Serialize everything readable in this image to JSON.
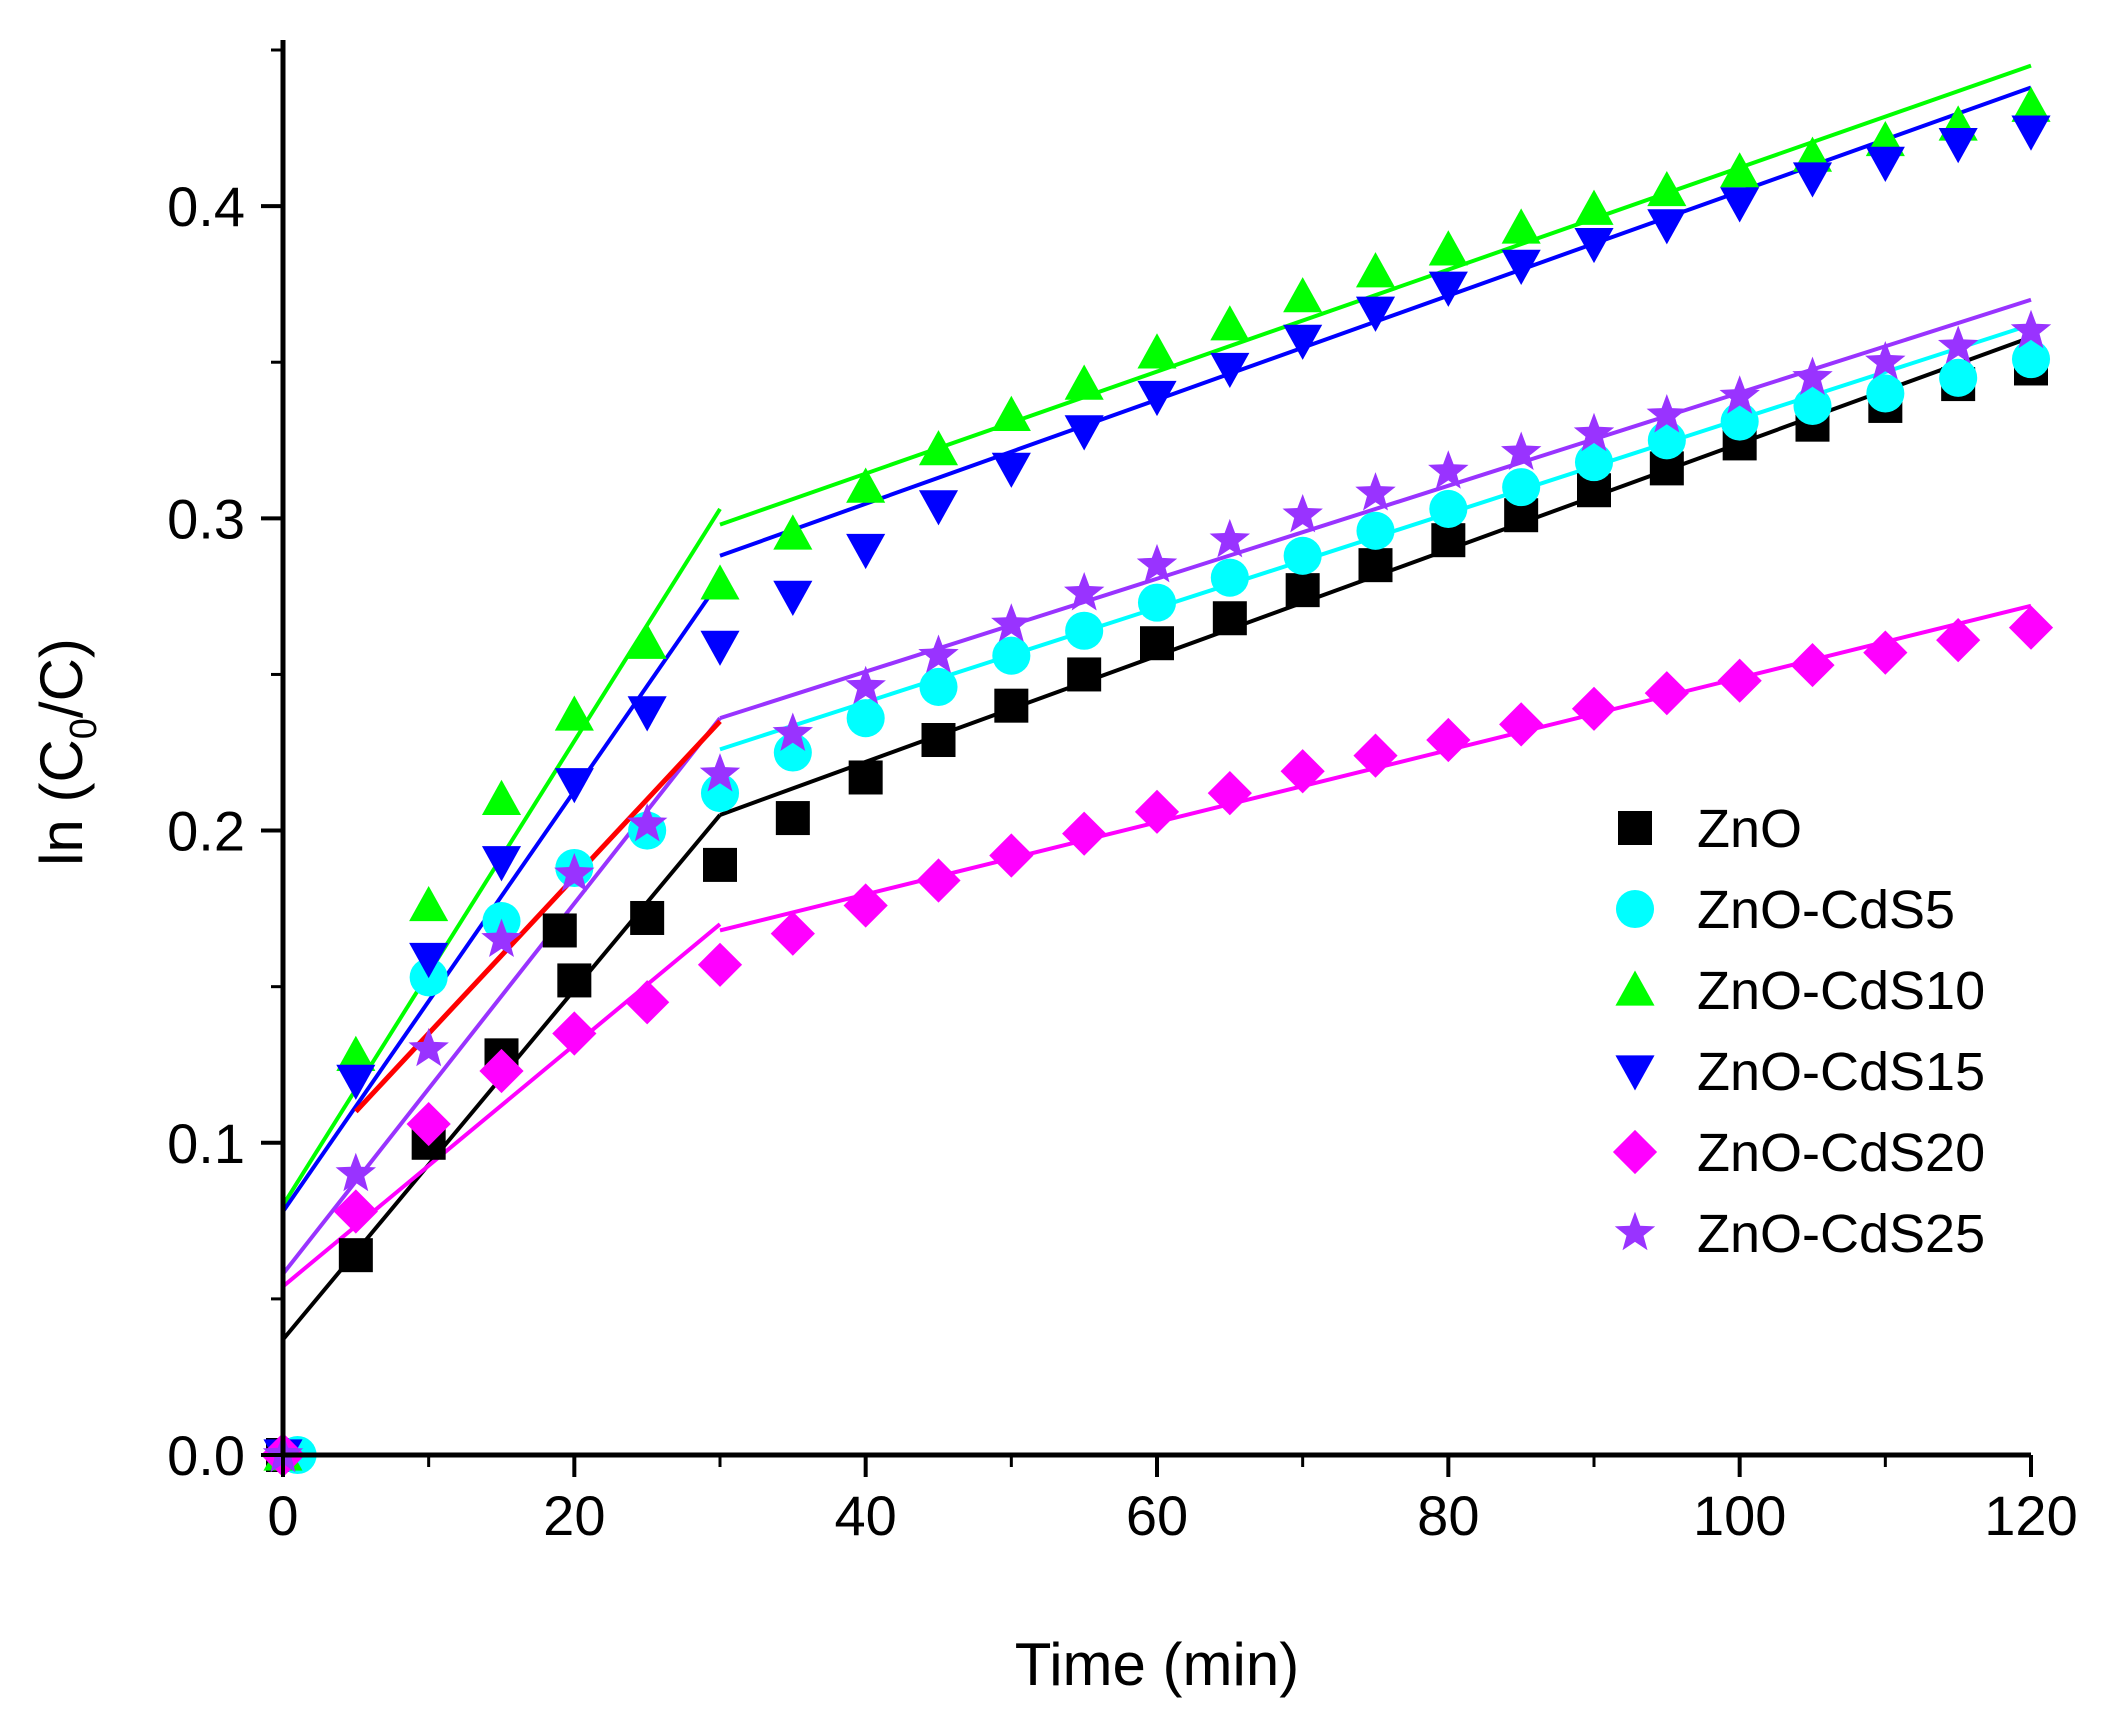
{
  "chart_data": {
    "type": "scatter",
    "title": "",
    "xlabel": "Time (min)",
    "ylabel_parts": {
      "pre": "ln (C",
      "sub": "0",
      "post": "/C)"
    },
    "xlim": [
      0,
      120
    ],
    "ylim": [
      0,
      0.45
    ],
    "x_ticks": [
      0,
      20,
      40,
      60,
      80,
      100,
      120
    ],
    "x_tick_labels": [
      "0",
      "20",
      "40",
      "60",
      "80",
      "100",
      "120"
    ],
    "y_ticks": [
      0,
      0.1,
      0.2,
      0.3,
      0.4
    ],
    "y_tick_labels": [
      "0.0",
      "0.1",
      "0.2",
      "0.3",
      "0.4"
    ],
    "grid": false,
    "legend_position": "right",
    "series": [
      {
        "name": "ZnO",
        "color": "#000000",
        "marker": "square",
        "x": [
          0,
          5,
          10,
          15,
          19,
          20,
          25,
          30,
          35,
          40,
          45,
          50,
          55,
          60,
          65,
          70,
          75,
          80,
          85,
          90,
          95,
          100,
          105,
          110,
          115,
          120
        ],
        "y": [
          0,
          0.064,
          0.1,
          0.128,
          0.168,
          0.152,
          0.172,
          0.189,
          0.204,
          0.217,
          0.229,
          0.24,
          0.25,
          0.26,
          0.268,
          0.277,
          0.285,
          0.293,
          0.301,
          0.309,
          0.316,
          0.324,
          0.33,
          0.336,
          0.343,
          0.348
        ],
        "fits": [
          {
            "x": [
              0,
              30
            ],
            "y": [
              0.037,
              0.205
            ]
          },
          {
            "x": [
              30,
              120
            ],
            "y": [
              0.205,
              0.358
            ]
          }
        ]
      },
      {
        "name": "ZnO-CdS5",
        "color": "#00ffff",
        "marker": "circle",
        "x": [
          1,
          10,
          15,
          20,
          25,
          30,
          35,
          40,
          45,
          50,
          55,
          60,
          65,
          70,
          75,
          80,
          85,
          90,
          95,
          100,
          105,
          110,
          115,
          120
        ],
        "y": [
          0,
          0.153,
          0.171,
          0.188,
          0.2,
          0.212,
          0.225,
          0.236,
          0.246,
          0.256,
          0.264,
          0.273,
          0.281,
          0.288,
          0.296,
          0.303,
          0.31,
          0.318,
          0.325,
          0.331,
          0.336,
          0.34,
          0.345,
          0.351
        ],
        "fits": [
          {
            "x": [
              30,
              120
            ],
            "y": [
              0.226,
              0.362
            ]
          }
        ]
      },
      {
        "name": "ZnO-CdS10",
        "color": "#00ff00",
        "marker": "triangle-up",
        "x": [
          0,
          5,
          10,
          15,
          20,
          25,
          30,
          35,
          40,
          45,
          50,
          55,
          60,
          65,
          70,
          75,
          80,
          85,
          90,
          95,
          100,
          105,
          110,
          115,
          120
        ],
        "y": [
          0,
          0.128,
          0.176,
          0.21,
          0.237,
          0.26,
          0.279,
          0.295,
          0.31,
          0.322,
          0.333,
          0.343,
          0.353,
          0.362,
          0.371,
          0.379,
          0.386,
          0.393,
          0.399,
          0.405,
          0.411,
          0.416,
          0.421,
          0.426,
          0.432
        ],
        "fits": [
          {
            "x": [
              0,
              30
            ],
            "y": [
              0.08,
              0.303
            ]
          },
          {
            "x": [
              30,
              120
            ],
            "y": [
              0.298,
              0.445
            ]
          }
        ]
      },
      {
        "name": "ZnO-CdS15",
        "color": "#0000ff",
        "marker": "triangle-down",
        "x": [
          0,
          5,
          10,
          15,
          20,
          25,
          30,
          35,
          40,
          45,
          50,
          55,
          60,
          65,
          70,
          75,
          80,
          85,
          90,
          95,
          100,
          105,
          110,
          115,
          120
        ],
        "y": [
          0,
          0.12,
          0.159,
          0.19,
          0.215,
          0.238,
          0.259,
          0.275,
          0.29,
          0.304,
          0.316,
          0.328,
          0.339,
          0.348,
          0.357,
          0.366,
          0.374,
          0.381,
          0.388,
          0.394,
          0.401,
          0.409,
          0.414,
          0.42,
          0.424
        ],
        "fits": [
          {
            "x": [
              0,
              30
            ],
            "y": [
              0.078,
              0.28
            ]
          },
          {
            "x": [
              30,
              120
            ],
            "y": [
              0.288,
              0.438
            ]
          }
        ]
      },
      {
        "name": "ZnO-CdS20",
        "color": "#ff00ff",
        "marker": "diamond",
        "x": [
          0,
          5,
          10,
          15,
          20,
          25,
          30,
          35,
          40,
          45,
          50,
          55,
          60,
          65,
          70,
          75,
          80,
          85,
          90,
          95,
          100,
          105,
          110,
          115,
          120
        ],
        "y": [
          0,
          0.078,
          0.106,
          0.123,
          0.135,
          0.145,
          0.157,
          0.167,
          0.176,
          0.184,
          0.192,
          0.199,
          0.206,
          0.212,
          0.219,
          0.224,
          0.229,
          0.234,
          0.239,
          0.244,
          0.248,
          0.253,
          0.257,
          0.261,
          0.265
        ],
        "fits": [
          {
            "x": [
              0,
              30
            ],
            "y": [
              0.054,
              0.17
            ]
          },
          {
            "x": [
              30,
              120
            ],
            "y": [
              0.168,
              0.272
            ]
          }
        ]
      },
      {
        "name": "ZnO-CdS25",
        "color": "#9933ff",
        "marker": "star",
        "x": [
          0,
          5,
          10,
          15,
          20,
          25,
          30,
          35,
          40,
          45,
          50,
          55,
          60,
          65,
          70,
          75,
          80,
          85,
          90,
          95,
          100,
          105,
          110,
          115,
          120
        ],
        "y": [
          0,
          0.09,
          0.13,
          0.165,
          0.186,
          0.202,
          0.218,
          0.231,
          0.246,
          0.256,
          0.266,
          0.276,
          0.285,
          0.293,
          0.301,
          0.308,
          0.315,
          0.321,
          0.327,
          0.333,
          0.339,
          0.345,
          0.35,
          0.355,
          0.36
        ],
        "fits": [
          {
            "x": [
              0,
              30
            ],
            "y": [
              0.058,
              0.236
            ]
          },
          {
            "x": [
              30,
              120
            ],
            "y": [
              0.236,
              0.37
            ]
          }
        ]
      }
    ],
    "extra_fits": [
      {
        "name": "red-fit",
        "color": "#ff0000",
        "x": [
          5,
          30
        ],
        "y": [
          0.11,
          0.235
        ]
      }
    ]
  }
}
